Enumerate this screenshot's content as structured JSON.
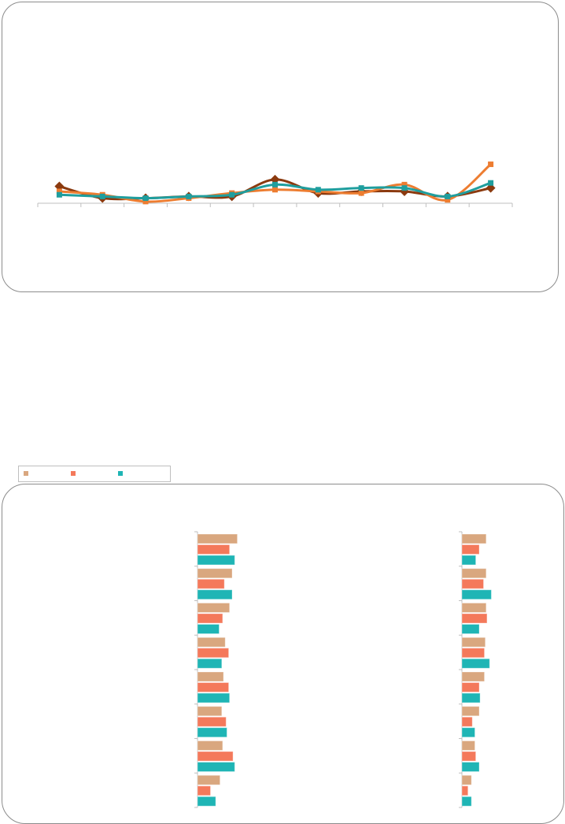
{
  "chart_data": [
    {
      "type": "line",
      "title": "",
      "xlabel": "",
      "ylabel": "",
      "categories": [
        "",
        "",
        "",
        "",
        "",
        "",
        "",
        "",
        "",
        "",
        ""
      ],
      "ylim": [
        0,
        100
      ],
      "grid": false,
      "smooth": true,
      "series": [
        {
          "values": [
            10,
            3,
            3,
            4,
            4,
            14,
            6,
            7,
            7,
            4,
            9
          ],
          "color": "#8b3a0f",
          "marker": "diamond"
        },
        {
          "values": [
            7,
            5,
            1,
            3,
            6,
            8,
            7,
            6,
            11,
            2,
            23
          ],
          "color": "#ed7d31",
          "marker": "square"
        },
        {
          "values": [
            5,
            4,
            3,
            4,
            5,
            11,
            8,
            9,
            9,
            4,
            12
          ],
          "color": "#1f9e9e",
          "marker": "square"
        }
      ]
    },
    {
      "type": "bar",
      "orientation": "horizontal",
      "title": "",
      "xlabel": "",
      "ylabel": "",
      "legend": "top-left",
      "grid": false,
      "panels": [
        {
          "categories": [
            "",
            "",
            "",
            "",
            "",
            "",
            "",
            ""
          ],
          "series": [
            {
              "values": [
                46,
                40,
                37,
                32,
                30,
                28,
                29,
                26
              ],
              "color": "#d9a77f"
            },
            {
              "values": [
                37,
                31,
                29,
                36,
                36,
                33,
                41,
                15
              ],
              "color": "#f4795b"
            },
            {
              "values": [
                43,
                40,
                25,
                28,
                37,
                34,
                43,
                21
              ],
              "color": "#1fb5b5"
            }
          ]
        },
        {
          "categories": [
            "",
            "",
            "",
            "",
            "",
            "",
            "",
            ""
          ],
          "series": [
            {
              "values": [
                28,
                28,
                28,
                27,
                26,
                20,
                15,
                11
              ],
              "color": "#d9a77f"
            },
            {
              "values": [
                20,
                25,
                29,
                26,
                20,
                12,
                16,
                7
              ],
              "color": "#f4795b"
            },
            {
              "values": [
                16,
                34,
                20,
                32,
                21,
                15,
                20,
                11
              ],
              "color": "#1fb5b5"
            }
          ]
        }
      ]
    }
  ]
}
